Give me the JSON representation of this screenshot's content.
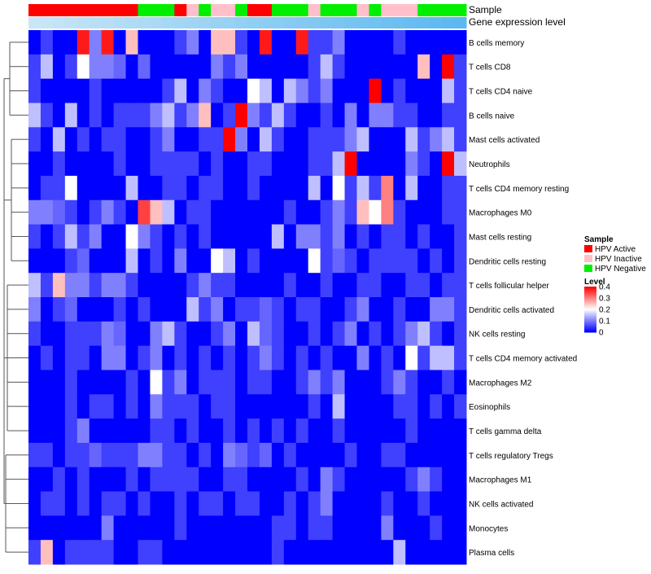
{
  "chart_data": {
    "type": "heatmap",
    "annotation_tracks": [
      "Sample",
      "Gene expression level"
    ],
    "rows": [
      "B cells memory",
      "T cells CD8",
      "T cells CD4 naive",
      "B cells naive",
      "Mast cells activated",
      "Neutrophils",
      "T cells CD4 memory resting",
      "Macrophages M0",
      "Mast cells resting",
      "Dendritic cells resting",
      "T cells follicular helper",
      "Dendritic cells activated",
      "NK cells resting",
      "T cells CD4 memory activated",
      "Macrophages M2",
      "Eosinophils",
      "T cells gamma delta",
      "T cells regulatory  Tregs",
      "Macrophages M1",
      "NK cells activated",
      "Monocytes",
      "Plasma cells"
    ],
    "column_count": 36,
    "sample_groups": [
      "HPV Active",
      "HPV Active",
      "HPV Active",
      "HPV Active",
      "HPV Active",
      "HPV Active",
      "HPV Active",
      "HPV Active",
      "HPV Active",
      "HPV Negative",
      "HPV Negative",
      "HPV Negative",
      "HPV Active",
      "HPV Inactive",
      "HPV Negative",
      "HPV Inactive",
      "HPV Inactive",
      "HPV Negative",
      "HPV Active",
      "HPV Active",
      "HPV Negative",
      "HPV Negative",
      "HPV Negative",
      "HPV Inactive",
      "HPV Negative",
      "HPV Negative",
      "HPV Negative",
      "HPV Inactive",
      "HPV Negative",
      "HPV Inactive",
      "HPV Inactive",
      "HPV Inactive",
      "HPV Negative",
      "HPV Negative",
      "HPV Negative",
      "HPV Negative"
    ],
    "expression_gradient": [
      "#c9e6f7",
      "#5bb8f0"
    ],
    "values": [
      [
        0.0,
        0.05,
        0.0,
        0.0,
        0.38,
        0.1,
        0.38,
        0.0,
        0.25,
        0.0,
        0.0,
        0.0,
        0.05,
        0.1,
        0.0,
        0.25,
        0.25,
        0.05,
        0.0,
        0.38,
        0.0,
        0.0,
        0.38,
        0.05,
        0.05,
        0.1,
        0.0,
        0.0,
        0.0,
        0.0,
        0.05,
        0.0,
        0.0,
        0.0,
        0.0,
        0.0
      ],
      [
        0.05,
        0.15,
        0.0,
        0.05,
        0.2,
        0.1,
        0.1,
        0.08,
        0.0,
        0.08,
        0.0,
        0.0,
        0.0,
        0.0,
        0.0,
        0.1,
        0.05,
        0.1,
        0.0,
        0.0,
        0.0,
        0.0,
        0.0,
        0.05,
        0.15,
        0.05,
        0.0,
        0.0,
        0.0,
        0.0,
        0.0,
        0.0,
        0.25,
        0.0,
        0.4,
        0.05
      ],
      [
        0.05,
        0.0,
        0.0,
        0.0,
        0.0,
        0.05,
        0.0,
        0.0,
        0.0,
        0.0,
        0.0,
        0.05,
        0.15,
        0.0,
        0.1,
        0.05,
        0.0,
        0.0,
        0.2,
        0.15,
        0.0,
        0.15,
        0.1,
        0.05,
        0.1,
        0.0,
        0.0,
        0.0,
        0.4,
        0.0,
        0.05,
        0.0,
        0.0,
        0.0,
        0.15,
        0.05
      ],
      [
        0.15,
        0.05,
        0.0,
        0.15,
        0.0,
        0.05,
        0.0,
        0.05,
        0.05,
        0.05,
        0.1,
        0.15,
        0.05,
        0.1,
        0.25,
        0.0,
        0.05,
        0.4,
        0.1,
        0.05,
        0.15,
        0.05,
        0.0,
        0.0,
        0.05,
        0.0,
        0.1,
        0.0,
        0.1,
        0.1,
        0.05,
        0.05,
        0.0,
        0.0,
        0.05,
        0.05
      ],
      [
        0.05,
        0.0,
        0.15,
        0.0,
        0.05,
        0.0,
        0.05,
        0.05,
        0.0,
        0.0,
        0.05,
        0.1,
        0.0,
        0.0,
        0.05,
        0.05,
        0.4,
        0.1,
        0.0,
        0.15,
        0.05,
        0.0,
        0.0,
        0.05,
        0.05,
        0.05,
        0.1,
        0.15,
        0.0,
        0.0,
        0.0,
        0.15,
        0.05,
        0.1,
        0.15,
        0.05
      ],
      [
        0.0,
        0.0,
        0.05,
        0.0,
        0.0,
        0.0,
        0.0,
        0.05,
        0.0,
        0.0,
        0.05,
        0.05,
        0.05,
        0.05,
        0.0,
        0.05,
        0.0,
        0.0,
        0.05,
        0.05,
        0.0,
        0.0,
        0.0,
        0.05,
        0.05,
        0.15,
        0.4,
        0.0,
        0.0,
        0.0,
        0.0,
        0.1,
        0.05,
        0.0,
        0.4,
        0.15
      ],
      [
        0.0,
        0.05,
        0.05,
        0.2,
        0.0,
        0.0,
        0.0,
        0.0,
        0.15,
        0.0,
        0.0,
        0.05,
        0.05,
        0.0,
        0.05,
        0.05,
        0.0,
        0.0,
        0.05,
        0.0,
        0.0,
        0.0,
        0.0,
        0.15,
        0.0,
        0.2,
        0.05,
        0.15,
        0.05,
        0.3,
        0.0,
        0.15,
        0.0,
        0.0,
        0.05,
        0.05
      ],
      [
        0.1,
        0.1,
        0.08,
        0.05,
        0.0,
        0.05,
        0.1,
        0.05,
        0.0,
        0.35,
        0.25,
        0.15,
        0.0,
        0.05,
        0.05,
        0.0,
        0.0,
        0.0,
        0.0,
        0.0,
        0.0,
        0.05,
        0.0,
        0.0,
        0.05,
        0.1,
        0.05,
        0.25,
        0.2,
        0.3,
        0.05,
        0.0,
        0.0,
        0.0,
        0.05,
        0.05
      ],
      [
        0.05,
        0.0,
        0.05,
        0.15,
        0.05,
        0.1,
        0.0,
        0.0,
        0.2,
        0.1,
        0.05,
        0.0,
        0.05,
        0.0,
        0.05,
        0.0,
        0.0,
        0.0,
        0.0,
        0.0,
        0.15,
        0.0,
        0.1,
        0.1,
        0.05,
        0.1,
        0.0,
        0.05,
        0.0,
        0.05,
        0.05,
        0.0,
        0.05,
        0.0,
        0.0,
        0.05
      ],
      [
        0.0,
        0.0,
        0.0,
        0.05,
        0.08,
        0.0,
        0.0,
        0.0,
        0.15,
        0.0,
        0.05,
        0.0,
        0.1,
        0.0,
        0.0,
        0.2,
        0.15,
        0.0,
        0.05,
        0.0,
        0.0,
        0.0,
        0.0,
        0.2,
        0.05,
        0.08,
        0.05,
        0.0,
        0.05,
        0.05,
        0.05,
        0.05,
        0.0,
        0.05,
        0.0,
        0.05
      ],
      [
        0.15,
        0.05,
        0.25,
        0.1,
        0.1,
        0.05,
        0.1,
        0.1,
        0.05,
        0.0,
        0.0,
        0.0,
        0.0,
        0.05,
        0.1,
        0.05,
        0.05,
        0.0,
        0.0,
        0.0,
        0.0,
        0.05,
        0.0,
        0.0,
        0.05,
        0.0,
        0.0,
        0.05,
        0.05,
        0.0,
        0.0,
        0.05,
        0.05,
        0.0,
        0.05,
        0.05
      ],
      [
        0.1,
        0.0,
        0.05,
        0.08,
        0.0,
        0.0,
        0.0,
        0.05,
        0.0,
        0.05,
        0.0,
        0.0,
        0.0,
        0.15,
        0.05,
        0.1,
        0.0,
        0.05,
        0.05,
        0.08,
        0.05,
        0.0,
        0.05,
        0.05,
        0.0,
        0.0,
        0.05,
        0.1,
        0.0,
        0.0,
        0.05,
        0.0,
        0.0,
        0.1,
        0.1,
        0.05
      ],
      [
        0.05,
        0.0,
        0.0,
        0.05,
        0.05,
        0.05,
        0.1,
        0.08,
        0.0,
        0.0,
        0.1,
        0.15,
        0.05,
        0.0,
        0.0,
        0.05,
        0.1,
        0.0,
        0.15,
        0.08,
        0.05,
        0.0,
        0.0,
        0.05,
        0.0,
        0.05,
        0.1,
        0.0,
        0.05,
        0.0,
        0.05,
        0.1,
        0.15,
        0.05,
        0.0,
        0.05
      ],
      [
        0.0,
        0.05,
        0.0,
        0.05,
        0.05,
        0.0,
        0.1,
        0.1,
        0.0,
        0.05,
        0.1,
        0.0,
        0.05,
        0.0,
        0.05,
        0.0,
        0.05,
        0.0,
        0.05,
        0.1,
        0.05,
        0.0,
        0.05,
        0.0,
        0.05,
        0.0,
        0.0,
        0.1,
        0.0,
        0.05,
        0.0,
        0.2,
        0.05,
        0.15,
        0.15,
        0.05
      ],
      [
        0.0,
        0.0,
        0.0,
        0.05,
        0.0,
        0.0,
        0.0,
        0.0,
        0.05,
        0.0,
        0.2,
        0.05,
        0.1,
        0.0,
        0.05,
        0.05,
        0.05,
        0.0,
        0.05,
        0.05,
        0.0,
        0.0,
        0.05,
        0.1,
        0.05,
        0.1,
        0.0,
        0.0,
        0.0,
        0.05,
        0.1,
        0.05,
        0.0,
        0.0,
        0.05,
        0.0
      ],
      [
        0.0,
        0.0,
        0.0,
        0.05,
        0.0,
        0.05,
        0.05,
        0.0,
        0.05,
        0.0,
        0.1,
        0.05,
        0.05,
        0.05,
        0.0,
        0.05,
        0.05,
        0.0,
        0.0,
        0.0,
        0.0,
        0.0,
        0.0,
        0.05,
        0.0,
        0.15,
        0.0,
        0.0,
        0.0,
        0.0,
        0.05,
        0.05,
        0.0,
        0.05,
        0.0,
        0.05
      ],
      [
        0.0,
        0.0,
        0.0,
        0.05,
        0.1,
        0.0,
        0.0,
        0.0,
        0.0,
        0.0,
        0.05,
        0.05,
        0.0,
        0.05,
        0.0,
        0.0,
        0.05,
        0.0,
        0.05,
        0.0,
        0.05,
        0.0,
        0.05,
        0.0,
        0.0,
        0.05,
        0.0,
        0.0,
        0.0,
        0.0,
        0.0,
        0.05,
        0.0,
        0.0,
        0.0,
        0.0
      ],
      [
        0.05,
        0.05,
        0.0,
        0.05,
        0.05,
        0.08,
        0.05,
        0.05,
        0.05,
        0.1,
        0.1,
        0.05,
        0.05,
        0.0,
        0.05,
        0.0,
        0.1,
        0.08,
        0.05,
        0.08,
        0.0,
        0.05,
        0.0,
        0.0,
        0.0,
        0.0,
        0.05,
        0.0,
        0.0,
        0.05,
        0.05,
        0.0,
        0.0,
        0.0,
        0.0,
        0.0
      ],
      [
        0.0,
        0.0,
        0.05,
        0.0,
        0.05,
        0.0,
        0.0,
        0.0,
        0.05,
        0.0,
        0.05,
        0.05,
        0.05,
        0.05,
        0.0,
        0.0,
        0.05,
        0.05,
        0.0,
        0.0,
        0.0,
        0.0,
        0.05,
        0.0,
        0.1,
        0.05,
        0.0,
        0.0,
        0.0,
        0.0,
        0.0,
        0.05,
        0.1,
        0.05,
        0.0,
        0.0
      ],
      [
        0.0,
        0.05,
        0.05,
        0.0,
        0.05,
        0.0,
        0.05,
        0.05,
        0.0,
        0.05,
        0.0,
        0.0,
        0.05,
        0.0,
        0.05,
        0.05,
        0.0,
        0.05,
        0.05,
        0.0,
        0.0,
        0.05,
        0.0,
        0.05,
        0.1,
        0.0,
        0.0,
        0.0,
        0.0,
        0.05,
        0.0,
        0.0,
        0.05,
        0.0,
        0.0,
        0.0
      ],
      [
        0.0,
        0.0,
        0.0,
        0.0,
        0.0,
        0.0,
        0.1,
        0.0,
        0.0,
        0.0,
        0.0,
        0.0,
        0.05,
        0.0,
        0.0,
        0.0,
        0.0,
        0.0,
        0.0,
        0.0,
        0.05,
        0.05,
        0.0,
        0.05,
        0.05,
        0.0,
        0.0,
        0.0,
        0.0,
        0.1,
        0.0,
        0.0,
        0.0,
        0.05,
        0.0,
        0.0
      ],
      [
        0.05,
        0.25,
        0.0,
        0.05,
        0.05,
        0.05,
        0.05,
        0.0,
        0.0,
        0.05,
        0.05,
        0.0,
        0.0,
        0.0,
        0.0,
        0.0,
        0.0,
        0.0,
        0.0,
        0.0,
        0.05,
        0.0,
        0.0,
        0.0,
        0.0,
        0.0,
        0.0,
        0.0,
        0.0,
        0.0,
        0.15,
        0.0,
        0.0,
        0.0,
        0.0,
        0.0
      ]
    ],
    "legend": {
      "sample_title": "Sample",
      "sample_entries": [
        {
          "label": "HPV Active",
          "color": "#ff0000"
        },
        {
          "label": "HPV Inactive",
          "color": "#ffc0cb"
        },
        {
          "label": "HPV Negative",
          "color": "#00ee00"
        }
      ],
      "level_title": "Level",
      "level_ticks": [
        "0.4",
        "0.3",
        "0.2",
        "0.1",
        "0"
      ],
      "level_range": [
        0,
        0.4
      ],
      "level_colors": [
        "#0000ff",
        "#ffffff",
        "#ff0000"
      ]
    },
    "legend_position": "right"
  }
}
